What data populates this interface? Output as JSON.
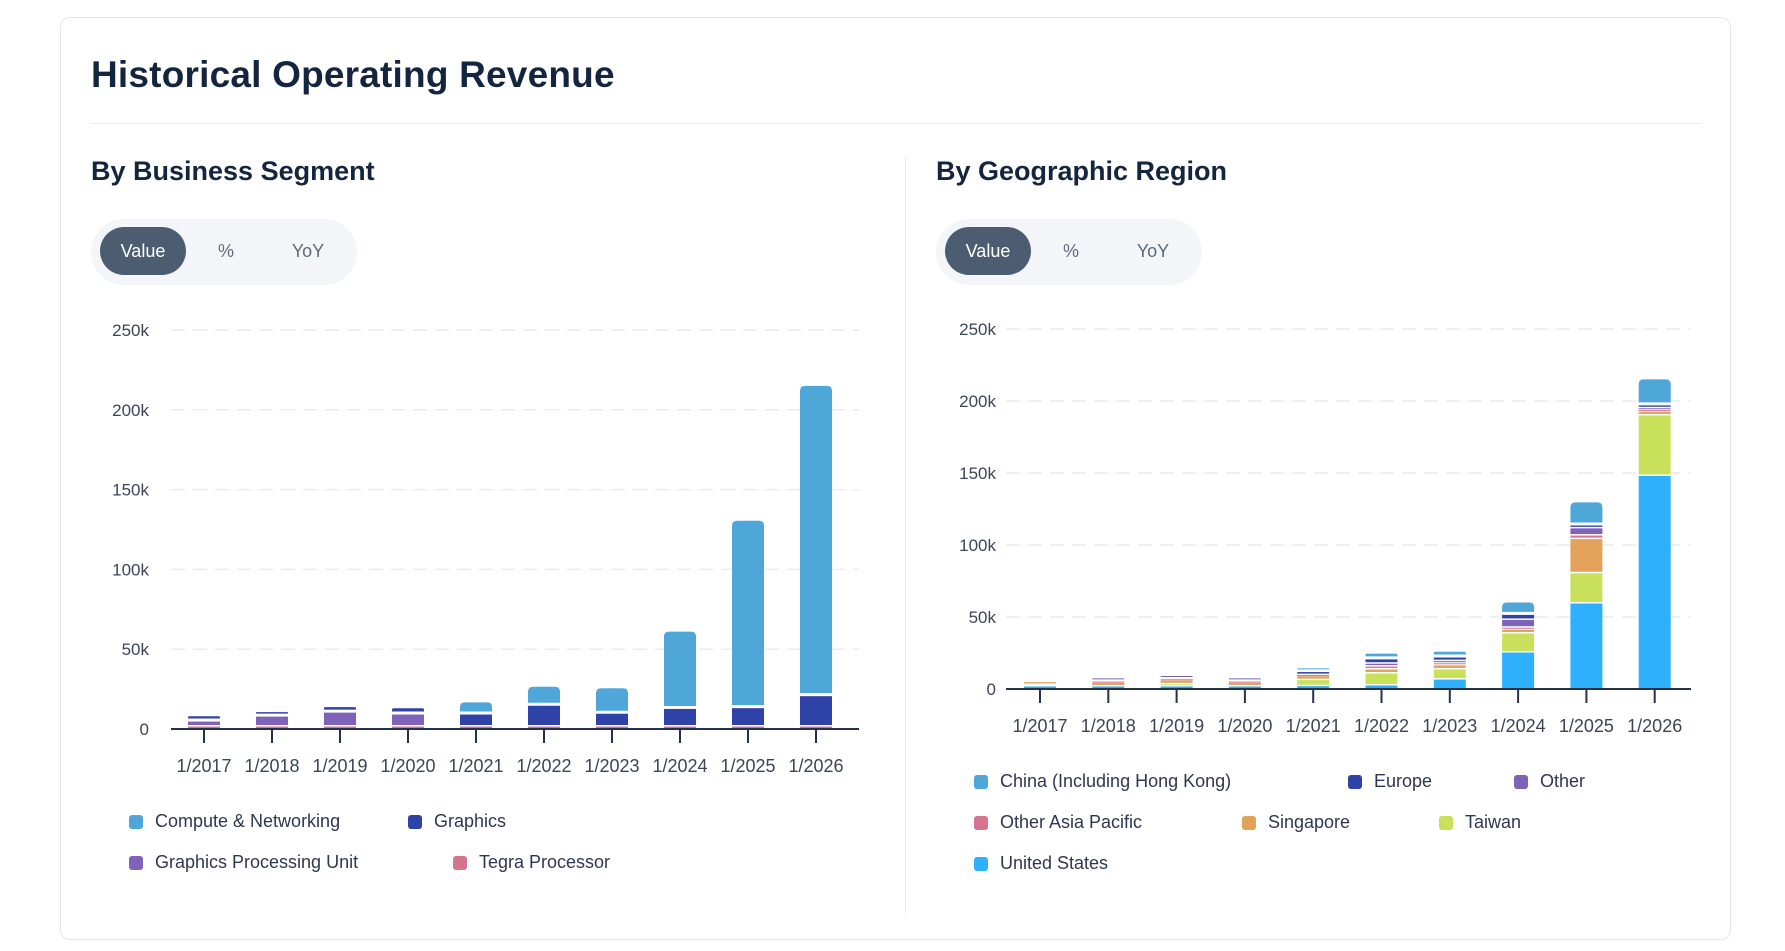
{
  "page": {
    "title": "Historical Operating Revenue"
  },
  "segment_section": {
    "title": "By Business Segment",
    "toggle": {
      "options": [
        "Value",
        "%",
        "YoY"
      ],
      "active": "Value"
    }
  },
  "geo_section": {
    "title": "By Geographic Region",
    "toggle": {
      "options": [
        "Value",
        "%",
        "YoY"
      ],
      "active": "Value"
    }
  },
  "chart_data": [
    {
      "id": "segment",
      "type": "bar",
      "stacked": true,
      "title": "By Business Segment",
      "xlabel": "",
      "ylabel": "",
      "categories": [
        "1/2017",
        "1/2018",
        "1/2019",
        "1/2020",
        "1/2021",
        "1/2022",
        "1/2023",
        "1/2024",
        "1/2025",
        "1/2026"
      ],
      "ylim": [
        0,
        250000
      ],
      "yticks": [
        0,
        50000,
        100000,
        150000,
        200000,
        250000
      ],
      "ytick_labels": [
        "0",
        "50k",
        "100k",
        "150k",
        "200k",
        "250k"
      ],
      "grid": true,
      "legend_position": "bottom",
      "series": [
        {
          "name": "Tegra Processor",
          "color": "#d4748f",
          "values": [
            2500,
            2500,
            2500,
            2500,
            2500,
            2500,
            2500,
            2500,
            2500,
            2500
          ]
        },
        {
          "name": "Graphics Processing Unit",
          "color": "#7f63b8",
          "values": [
            3100,
            6200,
            8700,
            7500,
            0,
            0,
            0,
            0,
            0,
            0
          ]
        },
        {
          "name": "Graphics",
          "color": "#2f42a7",
          "values": [
            2400,
            1900,
            2500,
            3000,
            7500,
            13000,
            8000,
            11000,
            11500,
            19000
          ]
        },
        {
          "name": "Compute & Networking",
          "color": "#4fa6d8",
          "values": [
            0,
            0,
            0,
            0,
            6700,
            11000,
            15000,
            47500,
            116500,
            193500
          ]
        }
      ],
      "legend": [
        "Compute & Networking",
        "Graphics",
        "Graphics Processing Unit",
        "Tegra Processor"
      ]
    },
    {
      "id": "geo",
      "type": "bar",
      "stacked": true,
      "title": "By Geographic Region",
      "xlabel": "",
      "ylabel": "",
      "categories": [
        "1/2017",
        "1/2018",
        "1/2019",
        "1/2020",
        "1/2021",
        "1/2022",
        "1/2023",
        "1/2024",
        "1/2025",
        "1/2026"
      ],
      "ylim": [
        0,
        250000
      ],
      "yticks": [
        0,
        50000,
        100000,
        150000,
        200000,
        250000
      ],
      "ytick_labels": [
        "0",
        "50k",
        "100k",
        "150k",
        "200k",
        "250k"
      ],
      "grid": true,
      "legend_position": "bottom",
      "series": [
        {
          "name": "United States",
          "color": "#2eb0fc",
          "values": [
            2800,
            2800,
            2800,
            2800,
            3000,
            3500,
            7600,
            26400,
            60400,
            149000
          ]
        },
        {
          "name": "Taiwan",
          "color": "#c9e05a",
          "values": [
            0,
            0,
            1500,
            0,
            4200,
            8300,
            7000,
            13200,
            21000,
            42000
          ]
        },
        {
          "name": "Singapore",
          "color": "#e2a25a",
          "values": [
            2000,
            2500,
            2600,
            2500,
            2700,
            2800,
            2800,
            2500,
            23700,
            2500
          ]
        },
        {
          "name": "Other Asia Pacific",
          "color": "#d4748f",
          "values": [
            0,
            900,
            900,
            900,
            900,
            2000,
            1500,
            1500,
            2500,
            1200
          ]
        },
        {
          "name": "Other",
          "color": "#7f63b8",
          "values": [
            0,
            1200,
            1200,
            1200,
            1500,
            2000,
            1500,
            5400,
            5000,
            1300
          ]
        },
        {
          "name": "Europe",
          "color": "#2f42a7",
          "values": [
            0,
            0,
            0,
            0,
            500,
            3000,
            2500,
            3500,
            2000,
            2000
          ]
        },
        {
          "name": "China (Including Hong Kong)",
          "color": "#4fa6d8",
          "values": [
            0,
            0,
            0,
            0,
            1500,
            3000,
            3000,
            7600,
            15000,
            17000
          ]
        }
      ],
      "legend": [
        "China (Including Hong Kong)",
        "Europe",
        "Other",
        "Other Asia Pacific",
        "Singapore",
        "Taiwan",
        "United States"
      ]
    }
  ]
}
